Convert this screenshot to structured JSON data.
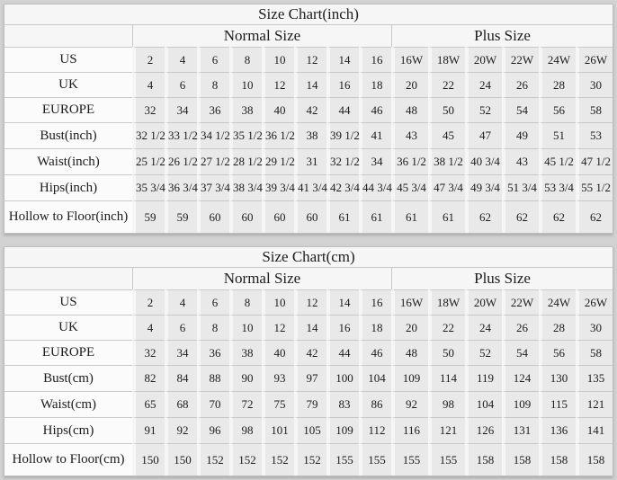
{
  "colors": {
    "page_bg": "#d2d2d2",
    "table_bg": "#f6f6f6",
    "cell_bg": "#e9e9e9",
    "label_bg": "#fbfbfb",
    "line": "#c9c9c9",
    "text": "#1c1c1c"
  },
  "chart_data": [
    {
      "type": "table",
      "title": "Size Chart(inch)",
      "group_headers": [
        {
          "label": "Normal Size",
          "span": 8
        },
        {
          "label": "Plus Size",
          "span": 6
        }
      ],
      "rows": [
        {
          "label": "US",
          "values": [
            "2",
            "4",
            "6",
            "8",
            "10",
            "12",
            "14",
            "16",
            "16W",
            "18W",
            "20W",
            "22W",
            "24W",
            "26W"
          ]
        },
        {
          "label": "UK",
          "values": [
            "4",
            "6",
            "8",
            "10",
            "12",
            "14",
            "16",
            "18",
            "20",
            "22",
            "24",
            "26",
            "28",
            "30"
          ]
        },
        {
          "label": "EUROPE",
          "values": [
            "32",
            "34",
            "36",
            "38",
            "40",
            "42",
            "44",
            "46",
            "48",
            "50",
            "52",
            "54",
            "56",
            "58"
          ]
        },
        {
          "label": "Bust(inch)",
          "values": [
            "32 1/2",
            "33 1/2",
            "34 1/2",
            "35 1/2",
            "36 1/2",
            "38",
            "39 1/2",
            "41",
            "43",
            "45",
            "47",
            "49",
            "51",
            "53"
          ]
        },
        {
          "label": "Waist(inch)",
          "values": [
            "25 1/2",
            "26 1/2",
            "27 1/2",
            "28 1/2",
            "29 1/2",
            "31",
            "32 1/2",
            "34",
            "36 1/2",
            "38 1/2",
            "40 3/4",
            "43",
            "45 1/2",
            "47 1/2"
          ]
        },
        {
          "label": "Hips(inch)",
          "values": [
            "35 3/4",
            "36 3/4",
            "37 3/4",
            "38 3/4",
            "39 3/4",
            "41 3/4",
            "42 3/4",
            "44 3/4",
            "45 3/4",
            "47 3/4",
            "49 3/4",
            "51 3/4",
            "53 3/4",
            "55 1/2"
          ]
        },
        {
          "label": "Hollow to Floor(inch)",
          "values": [
            "59",
            "59",
            "60",
            "60",
            "60",
            "60",
            "61",
            "61",
            "61",
            "61",
            "62",
            "62",
            "62",
            "62"
          ]
        }
      ]
    },
    {
      "type": "table",
      "title": "Size Chart(cm)",
      "group_headers": [
        {
          "label": "Normal Size",
          "span": 8
        },
        {
          "label": "Plus Size",
          "span": 6
        }
      ],
      "rows": [
        {
          "label": "US",
          "values": [
            "2",
            "4",
            "6",
            "8",
            "10",
            "12",
            "14",
            "16",
            "16W",
            "18W",
            "20W",
            "22W",
            "24W",
            "26W"
          ]
        },
        {
          "label": "UK",
          "values": [
            "4",
            "6",
            "8",
            "10",
            "12",
            "14",
            "16",
            "18",
            "20",
            "22",
            "24",
            "26",
            "28",
            "30"
          ]
        },
        {
          "label": "EUROPE",
          "values": [
            "32",
            "34",
            "36",
            "38",
            "40",
            "42",
            "44",
            "46",
            "48",
            "50",
            "52",
            "54",
            "56",
            "58"
          ]
        },
        {
          "label": "Bust(cm)",
          "values": [
            "82",
            "84",
            "88",
            "90",
            "93",
            "97",
            "100",
            "104",
            "109",
            "114",
            "119",
            "124",
            "130",
            "135"
          ]
        },
        {
          "label": "Waist(cm)",
          "values": [
            "65",
            "68",
            "70",
            "72",
            "75",
            "79",
            "83",
            "86",
            "92",
            "98",
            "104",
            "109",
            "115",
            "121"
          ]
        },
        {
          "label": "Hips(cm)",
          "values": [
            "91",
            "92",
            "96",
            "98",
            "101",
            "105",
            "109",
            "112",
            "116",
            "121",
            "126",
            "131",
            "136",
            "141"
          ]
        },
        {
          "label": "Hollow to Floor(cm)",
          "values": [
            "150",
            "150",
            "152",
            "152",
            "152",
            "152",
            "155",
            "155",
            "155",
            "155",
            "158",
            "158",
            "158",
            "158"
          ]
        }
      ]
    }
  ]
}
